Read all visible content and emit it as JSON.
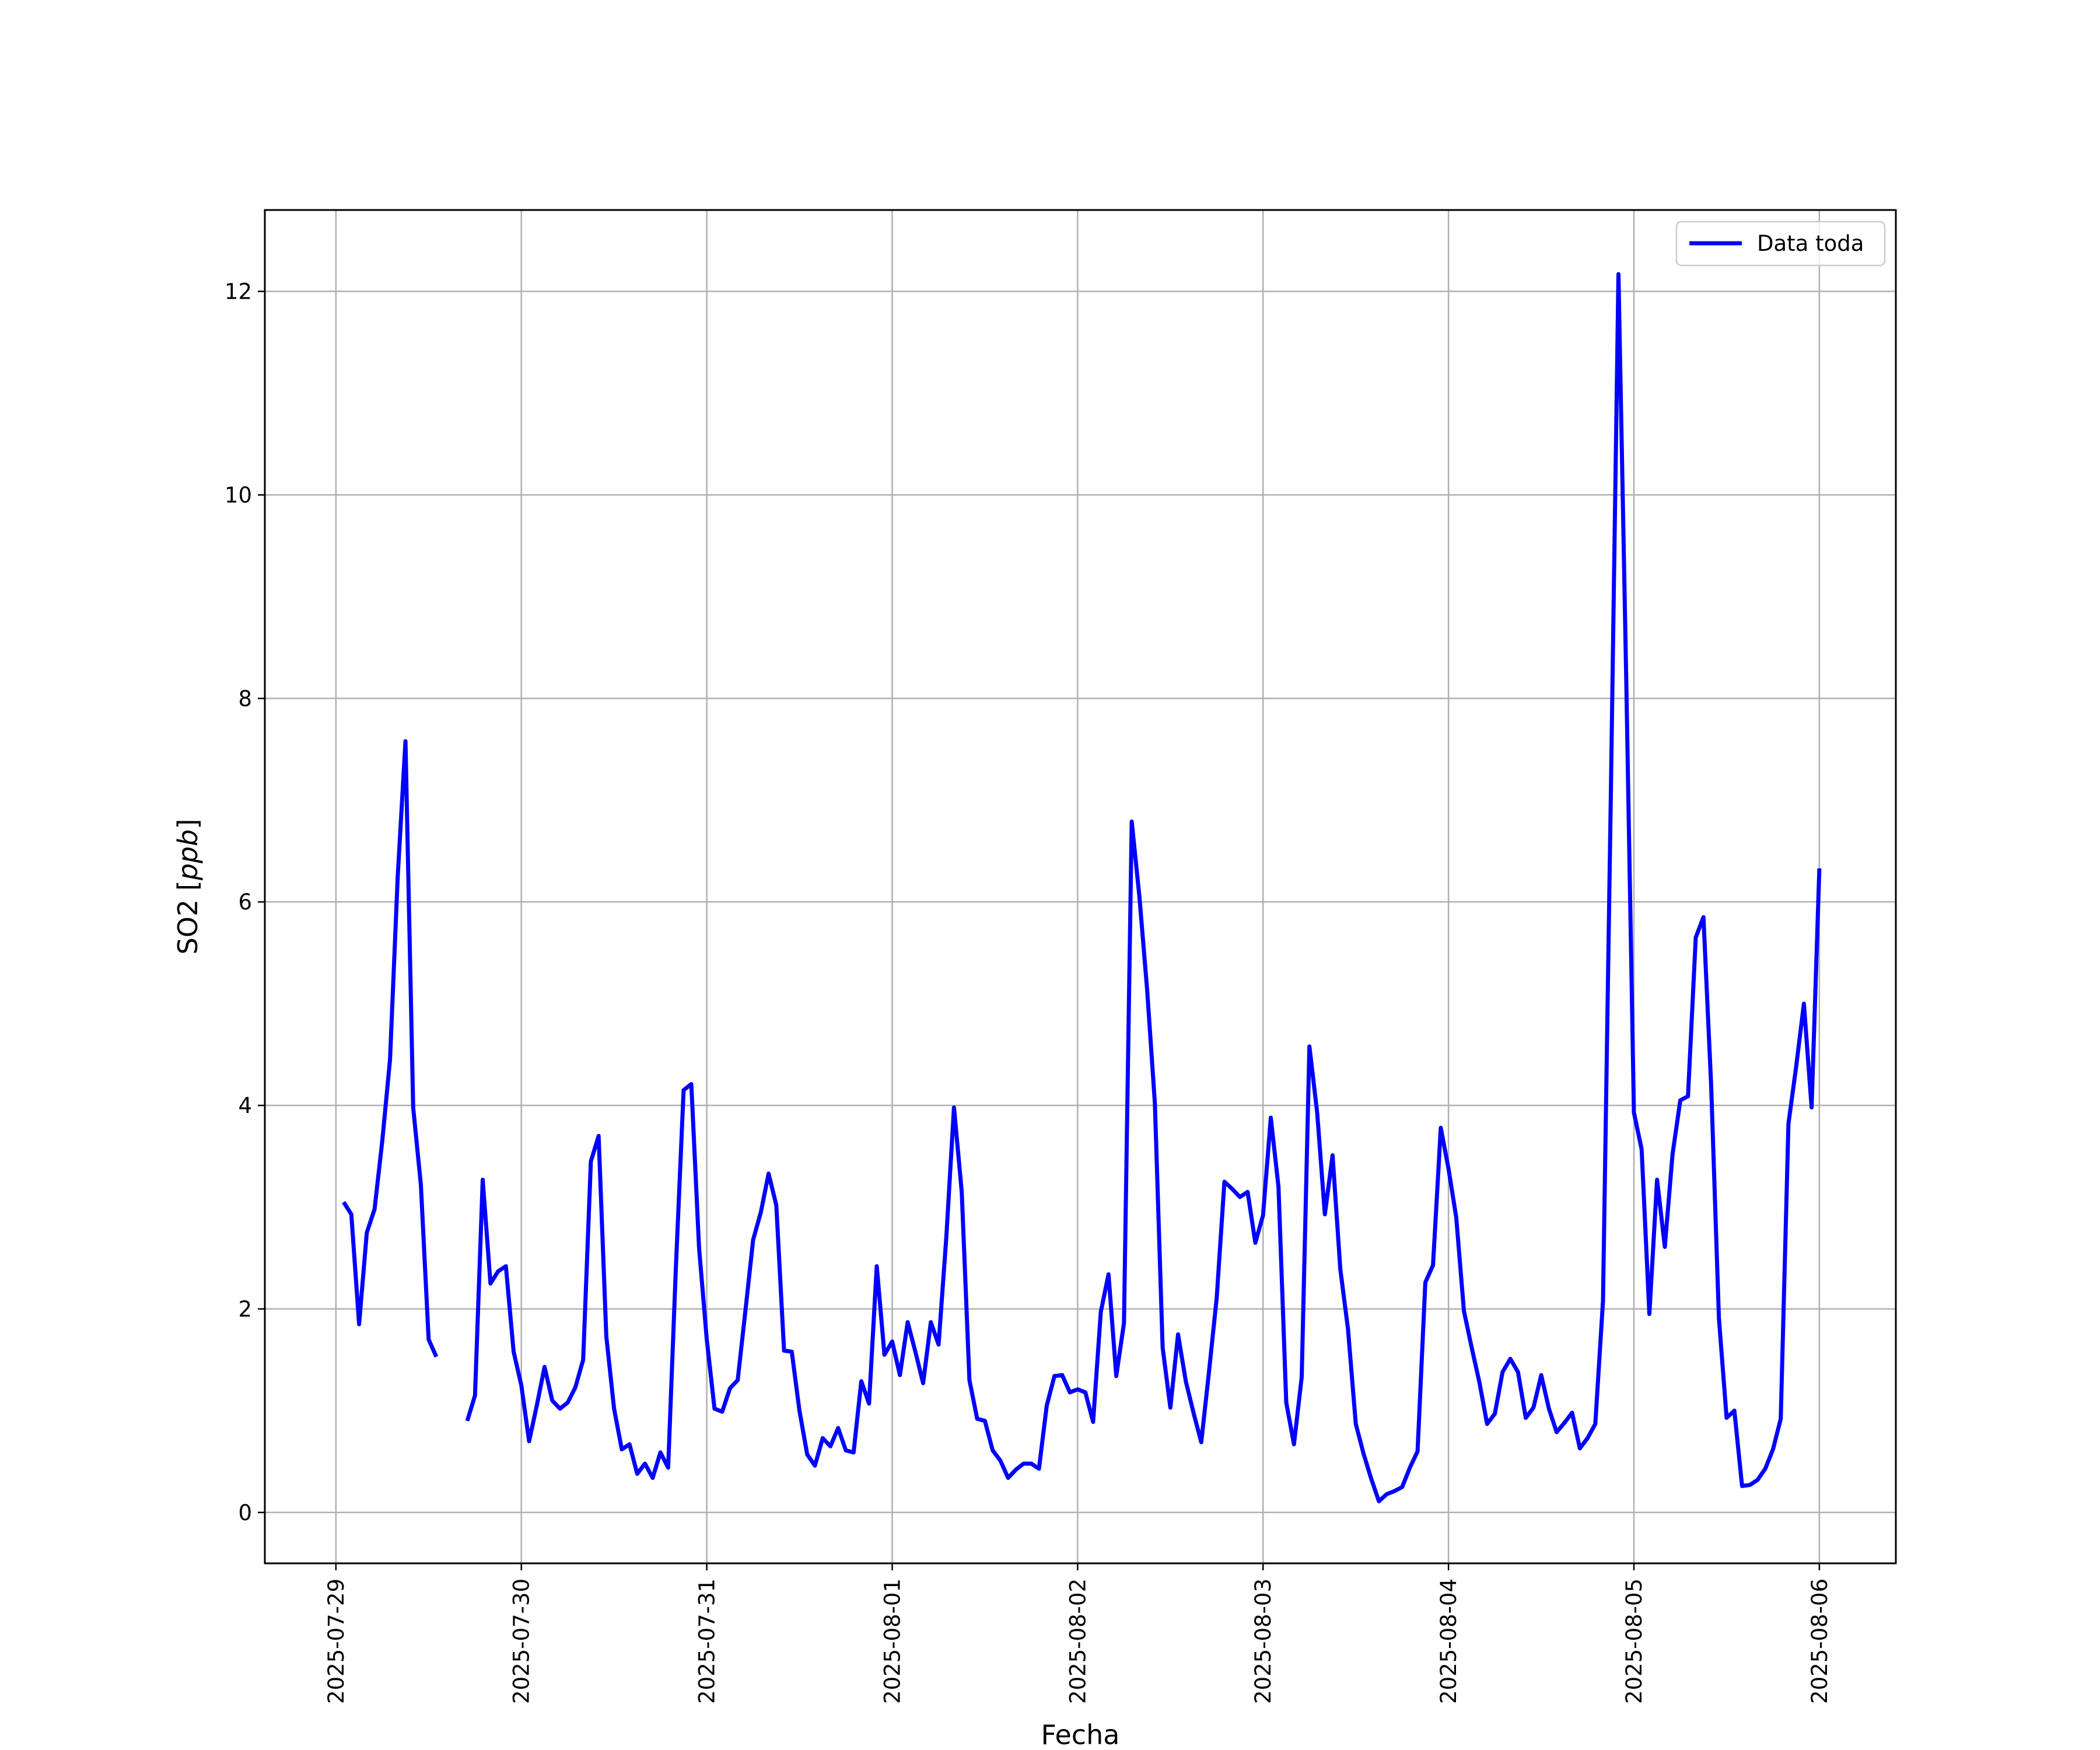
{
  "colors": {
    "series": "#0000ff",
    "grid": "#b0b0b0",
    "axes": "#000000",
    "background": "#ffffff"
  },
  "chart_data": {
    "type": "line",
    "title": "",
    "xlabel": "Fecha",
    "ylabel": "SO2 [ppb]",
    "ylabel_parts": {
      "name": "SO2 [",
      "unit": "ppb",
      "close": "]"
    },
    "xlim": [
      "2025-07-28T14:48:00",
      "2025-08-06T09:54:00"
    ],
    "ylim": [
      -0.5,
      12.8
    ],
    "xticks": [
      "2025-07-29",
      "2025-07-30",
      "2025-07-31",
      "2025-08-01",
      "2025-08-02",
      "2025-08-03",
      "2025-08-04",
      "2025-08-05",
      "2025-08-06"
    ],
    "yticks": [
      "0",
      "2",
      "4",
      "6",
      "8",
      "10",
      "12"
    ],
    "grid": true,
    "legend": {
      "position": "top-right",
      "entries": [
        "Data toda"
      ]
    },
    "series": [
      {
        "name": "Data toda",
        "color": "#0000ff",
        "x": [
          "2025-07-29T01:00:00",
          "2025-07-29T02:00:00",
          "2025-07-29T03:00:00",
          "2025-07-29T04:00:00",
          "2025-07-29T05:00:00",
          "2025-07-29T06:00:00",
          "2025-07-29T07:00:00",
          "2025-07-29T08:00:00",
          "2025-07-29T09:00:00",
          "2025-07-29T10:00:00",
          "2025-07-29T11:00:00",
          "2025-07-29T12:00:00",
          "2025-07-29T13:00:00",
          "2025-07-29T14:00:00",
          "2025-07-29T15:00:00",
          "2025-07-29T16:00:00",
          "2025-07-29T17:00:00",
          "2025-07-29T18:00:00",
          "2025-07-29T19:00:00",
          "2025-07-29T20:00:00",
          "2025-07-29T21:00:00",
          "2025-07-29T22:00:00",
          "2025-07-29T23:00:00",
          "2025-07-30T00:00:00",
          "2025-07-30T01:00:00",
          "2025-07-30T02:00:00",
          "2025-07-30T03:00:00",
          "2025-07-30T04:00:00",
          "2025-07-30T05:00:00",
          "2025-07-30T06:00:00",
          "2025-07-30T07:00:00",
          "2025-07-30T08:00:00",
          "2025-07-30T09:00:00",
          "2025-07-30T10:00:00",
          "2025-07-30T11:00:00",
          "2025-07-30T12:00:00",
          "2025-07-30T13:00:00",
          "2025-07-30T14:00:00",
          "2025-07-30T15:00:00",
          "2025-07-30T16:00:00",
          "2025-07-30T17:00:00",
          "2025-07-30T18:00:00",
          "2025-07-30T19:00:00",
          "2025-07-30T20:00:00",
          "2025-07-30T21:00:00",
          "2025-07-30T22:00:00",
          "2025-07-30T23:00:00",
          "2025-07-31T00:00:00",
          "2025-07-31T01:00:00",
          "2025-07-31T02:00:00",
          "2025-07-31T03:00:00",
          "2025-07-31T04:00:00",
          "2025-07-31T05:00:00",
          "2025-07-31T06:00:00",
          "2025-07-31T07:00:00",
          "2025-07-31T08:00:00",
          "2025-07-31T09:00:00",
          "2025-07-31T10:00:00",
          "2025-07-31T11:00:00",
          "2025-07-31T12:00:00",
          "2025-07-31T13:00:00",
          "2025-07-31T14:00:00",
          "2025-07-31T15:00:00",
          "2025-07-31T16:00:00",
          "2025-07-31T17:00:00",
          "2025-07-31T18:00:00",
          "2025-07-31T19:00:00",
          "2025-07-31T20:00:00",
          "2025-07-31T21:00:00",
          "2025-07-31T22:00:00",
          "2025-07-31T23:00:00",
          "2025-08-01T00:00:00",
          "2025-08-01T01:00:00",
          "2025-08-01T02:00:00",
          "2025-08-01T03:00:00",
          "2025-08-01T04:00:00",
          "2025-08-01T05:00:00",
          "2025-08-01T06:00:00",
          "2025-08-01T07:00:00",
          "2025-08-01T08:00:00",
          "2025-08-01T09:00:00",
          "2025-08-01T10:00:00",
          "2025-08-01T11:00:00",
          "2025-08-01T12:00:00",
          "2025-08-01T13:00:00",
          "2025-08-01T14:00:00",
          "2025-08-01T15:00:00",
          "2025-08-01T16:00:00",
          "2025-08-01T17:00:00",
          "2025-08-01T18:00:00",
          "2025-08-01T19:00:00",
          "2025-08-01T20:00:00",
          "2025-08-01T21:00:00",
          "2025-08-01T22:00:00",
          "2025-08-01T23:00:00",
          "2025-08-02T00:00:00",
          "2025-08-02T01:00:00",
          "2025-08-02T02:00:00",
          "2025-08-02T03:00:00",
          "2025-08-02T04:00:00",
          "2025-08-02T05:00:00",
          "2025-08-02T06:00:00",
          "2025-08-02T07:00:00",
          "2025-08-02T08:00:00",
          "2025-08-02T09:00:00",
          "2025-08-02T10:00:00",
          "2025-08-02T11:00:00",
          "2025-08-02T12:00:00",
          "2025-08-02T13:00:00",
          "2025-08-02T14:00:00",
          "2025-08-02T15:00:00",
          "2025-08-02T16:00:00",
          "2025-08-02T17:00:00",
          "2025-08-02T18:00:00",
          "2025-08-02T19:00:00",
          "2025-08-02T20:00:00",
          "2025-08-02T21:00:00",
          "2025-08-02T22:00:00",
          "2025-08-02T23:00:00",
          "2025-08-03T00:00:00",
          "2025-08-03T01:00:00",
          "2025-08-03T02:00:00",
          "2025-08-03T03:00:00",
          "2025-08-03T04:00:00",
          "2025-08-03T05:00:00",
          "2025-08-03T06:00:00",
          "2025-08-03T07:00:00",
          "2025-08-03T08:00:00",
          "2025-08-03T09:00:00",
          "2025-08-03T10:00:00",
          "2025-08-03T11:00:00",
          "2025-08-03T12:00:00",
          "2025-08-03T13:00:00",
          "2025-08-03T14:00:00",
          "2025-08-03T15:00:00",
          "2025-08-03T16:00:00",
          "2025-08-03T17:00:00",
          "2025-08-03T18:00:00",
          "2025-08-03T19:00:00",
          "2025-08-03T20:00:00",
          "2025-08-03T21:00:00",
          "2025-08-03T22:00:00",
          "2025-08-03T23:00:00",
          "2025-08-04T00:00:00",
          "2025-08-04T01:00:00",
          "2025-08-04T02:00:00",
          "2025-08-04T03:00:00",
          "2025-08-04T04:00:00",
          "2025-08-04T05:00:00",
          "2025-08-04T06:00:00",
          "2025-08-04T07:00:00",
          "2025-08-04T08:00:00",
          "2025-08-04T09:00:00",
          "2025-08-04T10:00:00",
          "2025-08-04T11:00:00",
          "2025-08-04T12:00:00",
          "2025-08-04T13:00:00",
          "2025-08-04T14:00:00",
          "2025-08-04T15:00:00",
          "2025-08-04T16:00:00",
          "2025-08-04T17:00:00",
          "2025-08-04T18:00:00",
          "2025-08-04T19:00:00",
          "2025-08-04T20:00:00",
          "2025-08-04T21:00:00",
          "2025-08-04T22:00:00",
          "2025-08-04T23:00:00",
          "2025-08-05T00:00:00",
          "2025-08-05T01:00:00",
          "2025-08-05T02:00:00",
          "2025-08-05T03:00:00",
          "2025-08-05T04:00:00",
          "2025-08-05T05:00:00",
          "2025-08-05T06:00:00",
          "2025-08-05T07:00:00",
          "2025-08-05T08:00:00",
          "2025-08-05T09:00:00",
          "2025-08-05T10:00:00",
          "2025-08-05T11:00:00",
          "2025-08-05T12:00:00",
          "2025-08-05T13:00:00",
          "2025-08-05T14:00:00",
          "2025-08-05T15:00:00",
          "2025-08-05T16:00:00",
          "2025-08-05T17:00:00",
          "2025-08-05T18:00:00",
          "2025-08-05T19:00:00",
          "2025-08-05T20:00:00",
          "2025-08-05T21:00:00",
          "2025-08-05T22:00:00",
          "2025-08-05T23:00:00",
          "2025-08-06T00:00:00"
        ],
        "y": [
          3.05,
          2.93,
          1.85,
          2.75,
          2.98,
          3.65,
          4.45,
          6.25,
          7.58,
          3.98,
          3.22,
          1.7,
          1.53,
          null,
          null,
          null,
          0.9,
          1.15,
          3.27,
          2.25,
          2.37,
          2.42,
          1.58,
          1.25,
          0.7,
          1.05,
          1.43,
          1.1,
          1.02,
          1.08,
          1.23,
          1.5,
          3.45,
          3.7,
          1.73,
          1.02,
          0.62,
          0.67,
          0.38,
          0.48,
          0.34,
          0.59,
          0.44,
          2.4,
          4.15,
          4.21,
          2.6,
          1.7,
          1.02,
          0.99,
          1.22,
          1.3,
          1.98,
          2.68,
          2.95,
          3.33,
          3.02,
          1.59,
          1.58,
          1.0,
          0.57,
          0.46,
          0.73,
          0.65,
          0.83,
          0.61,
          0.59,
          1.29,
          1.07,
          2.42,
          1.55,
          1.68,
          1.35,
          1.87,
          1.58,
          1.27,
          1.87,
          1.65,
          2.7,
          3.98,
          3.15,
          1.3,
          0.92,
          0.9,
          0.61,
          0.51,
          0.34,
          0.42,
          0.48,
          0.48,
          0.43,
          1.05,
          1.34,
          1.35,
          1.18,
          1.21,
          1.18,
          0.89,
          1.97,
          2.34,
          1.34,
          1.86,
          6.79,
          6.05,
          5.13,
          4.02,
          1.62,
          1.03,
          1.75,
          1.29,
          0.98,
          0.69,
          1.38,
          2.11,
          3.25,
          3.18,
          3.1,
          3.15,
          2.65,
          2.92,
          3.88,
          3.2,
          1.08,
          0.67,
          1.33,
          4.58,
          3.93,
          2.93,
          3.51,
          2.39,
          1.8,
          0.87,
          0.58,
          0.33,
          0.11,
          0.18,
          0.21,
          0.25,
          0.44,
          0.6,
          2.26,
          2.43,
          3.78,
          3.38,
          2.9,
          1.98,
          1.62,
          1.28,
          0.87,
          0.97,
          1.38,
          1.51,
          1.38,
          0.93,
          1.03,
          1.35,
          1.02,
          0.79,
          0.88,
          0.98,
          0.63,
          0.73,
          0.87,
          2.08,
          7.0,
          12.17,
          8.2,
          3.93,
          3.57,
          1.95,
          3.27,
          2.61,
          3.52,
          4.05,
          4.09,
          5.65,
          5.85,
          4.2,
          1.91,
          0.93,
          1.0,
          0.26,
          0.27,
          0.32,
          0.43,
          0.62,
          0.92,
          3.82,
          4.38,
          5.0,
          3.98,
          6.33
        ]
      }
    ]
  }
}
